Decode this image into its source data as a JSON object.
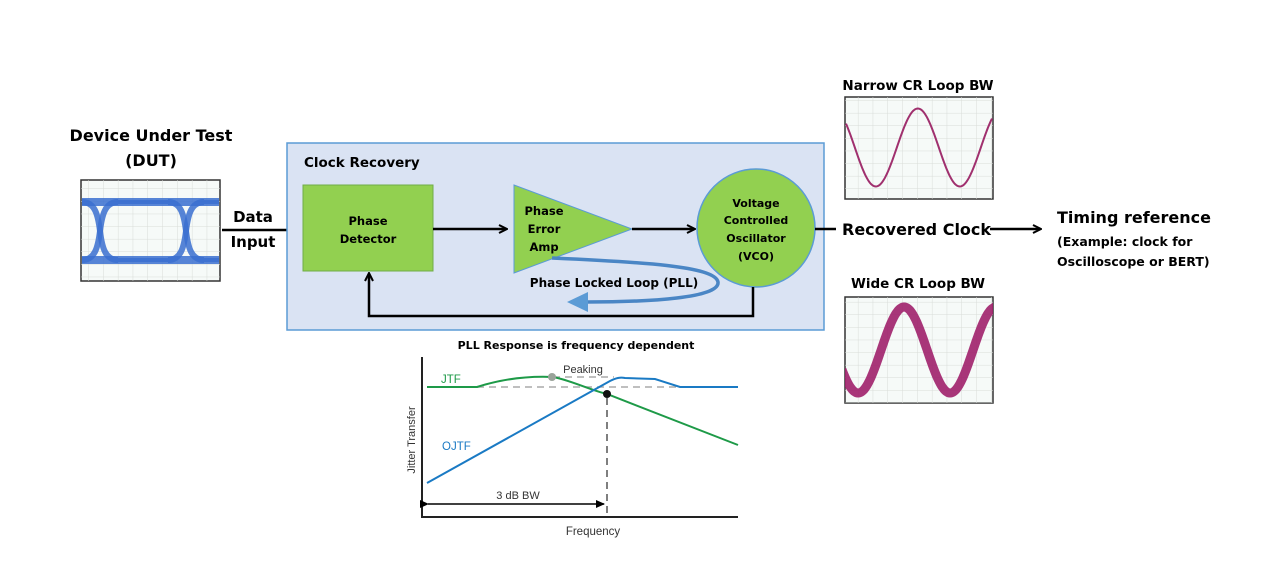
{
  "dut": {
    "title_line1": "Device Under Test",
    "title_line2": "(DUT)"
  },
  "data_input": {
    "line1": "Data",
    "line2": "Input"
  },
  "clock_recovery": {
    "title": "Clock Recovery",
    "phase_detector": {
      "line1": "Phase",
      "line2": "Detector"
    },
    "phase_error_amp": {
      "line1": "Phase",
      "line2": "Error",
      "line3": "Amp"
    },
    "vco": {
      "line1": "Voltage",
      "line2": "Controlled",
      "line3": "Oscillator",
      "line4": "(VCO)"
    },
    "pll_label": "Phase Locked Loop (PLL)"
  },
  "recovered_clock": "Recovered Clock",
  "timing_reference": {
    "title": "Timing reference",
    "line2": "(Example: clock for",
    "line3": "Oscilloscope or BERT)"
  },
  "scopes": {
    "narrow_title": "Narrow CR Loop BW",
    "wide_title": "Wide CR Loop BW"
  },
  "pll_chart": {
    "title": "PLL Response is frequency dependent",
    "ylabel": "Jitter Transfer",
    "xlabel": "Frequency",
    "jtf_label": "JTF",
    "ojtf_label": "OJTF",
    "peaking_label": "Peaking",
    "bw_label": "3 dB BW"
  },
  "colors": {
    "block_fill": "#92d050",
    "panel_fill": "#dae3f3",
    "panel_border": "#5b9bd5",
    "jtf": "#1e9a48",
    "ojtf": "#1a7ac4",
    "eye": "#3a6fd0",
    "clock_trace": "#a0306e"
  }
}
